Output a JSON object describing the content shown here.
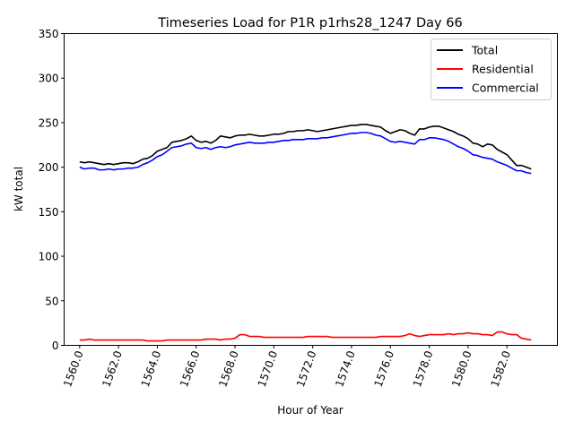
{
  "chart_data": {
    "type": "line",
    "title": "Timeseries Load for P1R p1rhs28_1247  Day 66",
    "xlabel": "Hour of Year",
    "ylabel": "kW total",
    "xlim": [
      1559.2,
      1584.6
    ],
    "ylim": [
      0,
      350
    ],
    "xticks": [
      1560,
      1562,
      1564,
      1566,
      1568,
      1570,
      1572,
      1574,
      1576,
      1578,
      1580,
      1582
    ],
    "xtick_labels": [
      "1560.0",
      "1562.0",
      "1564.0",
      "1566.0",
      "1568.0",
      "1570.0",
      "1572.0",
      "1574.0",
      "1576.0",
      "1578.0",
      "1580.0",
      "1582.0"
    ],
    "yticks": [
      0,
      50,
      100,
      150,
      200,
      250,
      300,
      350
    ],
    "ytick_labels": [
      "0",
      "50",
      "100",
      "150",
      "200",
      "250",
      "300",
      "350"
    ],
    "legend_position": "top-right",
    "x_start": 1560,
    "x_step": 0.25,
    "series": [
      {
        "name": "Total",
        "color": "#000000",
        "values": [
          206,
          205,
          206,
          205,
          204,
          203,
          204,
          203,
          204,
          205,
          205,
          204,
          206,
          209,
          210,
          213,
          218,
          220,
          222,
          228,
          229,
          230,
          232,
          235,
          230,
          228,
          229,
          227,
          230,
          235,
          234,
          233,
          235,
          236,
          236,
          237,
          236,
          235,
          235,
          236,
          237,
          237,
          238,
          240,
          240,
          241,
          241,
          242,
          241,
          240,
          241,
          242,
          243,
          244,
          245,
          246,
          247,
          247,
          248,
          248,
          247,
          246,
          245,
          241,
          238,
          240,
          242,
          241,
          238,
          236,
          243,
          243,
          245,
          246,
          246,
          244,
          242,
          240,
          237,
          235,
          232,
          227,
          226,
          223,
          226,
          225,
          220,
          217,
          214,
          208,
          202,
          202,
          200,
          198
        ]
      },
      {
        "name": "Residential",
        "color": "#ff0000",
        "values": [
          6,
          6,
          7,
          6,
          6,
          6,
          6,
          6,
          6,
          6,
          6,
          6,
          6,
          6,
          5,
          5,
          5,
          5,
          6,
          6,
          6,
          6,
          6,
          6,
          6,
          6,
          7,
          7,
          7,
          6,
          7,
          7,
          8,
          12,
          12,
          10,
          10,
          10,
          9,
          9,
          9,
          9,
          9,
          9,
          9,
          9,
          9,
          10,
          10,
          10,
          10,
          10,
          9,
          9,
          9,
          9,
          9,
          9,
          9,
          9,
          9,
          9,
          10,
          10,
          10,
          10,
          10,
          11,
          13,
          11,
          10,
          11,
          12,
          12,
          12,
          12,
          13,
          12,
          13,
          13,
          14,
          13,
          13,
          12,
          12,
          11,
          15,
          15,
          13,
          12,
          12,
          8,
          7,
          6
        ]
      },
      {
        "name": "Commercial",
        "color": "#0000ff",
        "values": [
          200,
          198,
          199,
          199,
          197,
          197,
          198,
          197,
          198,
          198,
          199,
          199,
          200,
          203,
          205,
          208,
          212,
          214,
          218,
          222,
          223,
          224,
          226,
          227,
          222,
          221,
          222,
          220,
          222,
          223,
          222,
          223,
          225,
          226,
          227,
          228,
          227,
          227,
          227,
          228,
          228,
          229,
          230,
          230,
          231,
          231,
          231,
          232,
          232,
          232,
          233,
          233,
          234,
          235,
          236,
          237,
          238,
          238,
          239,
          239,
          238,
          236,
          235,
          232,
          229,
          228,
          229,
          228,
          227,
          226,
          231,
          231,
          233,
          233,
          232,
          231,
          229,
          226,
          223,
          221,
          218,
          214,
          213,
          211,
          210,
          209,
          206,
          204,
          202,
          199,
          196,
          196,
          194,
          193
        ]
      }
    ]
  }
}
